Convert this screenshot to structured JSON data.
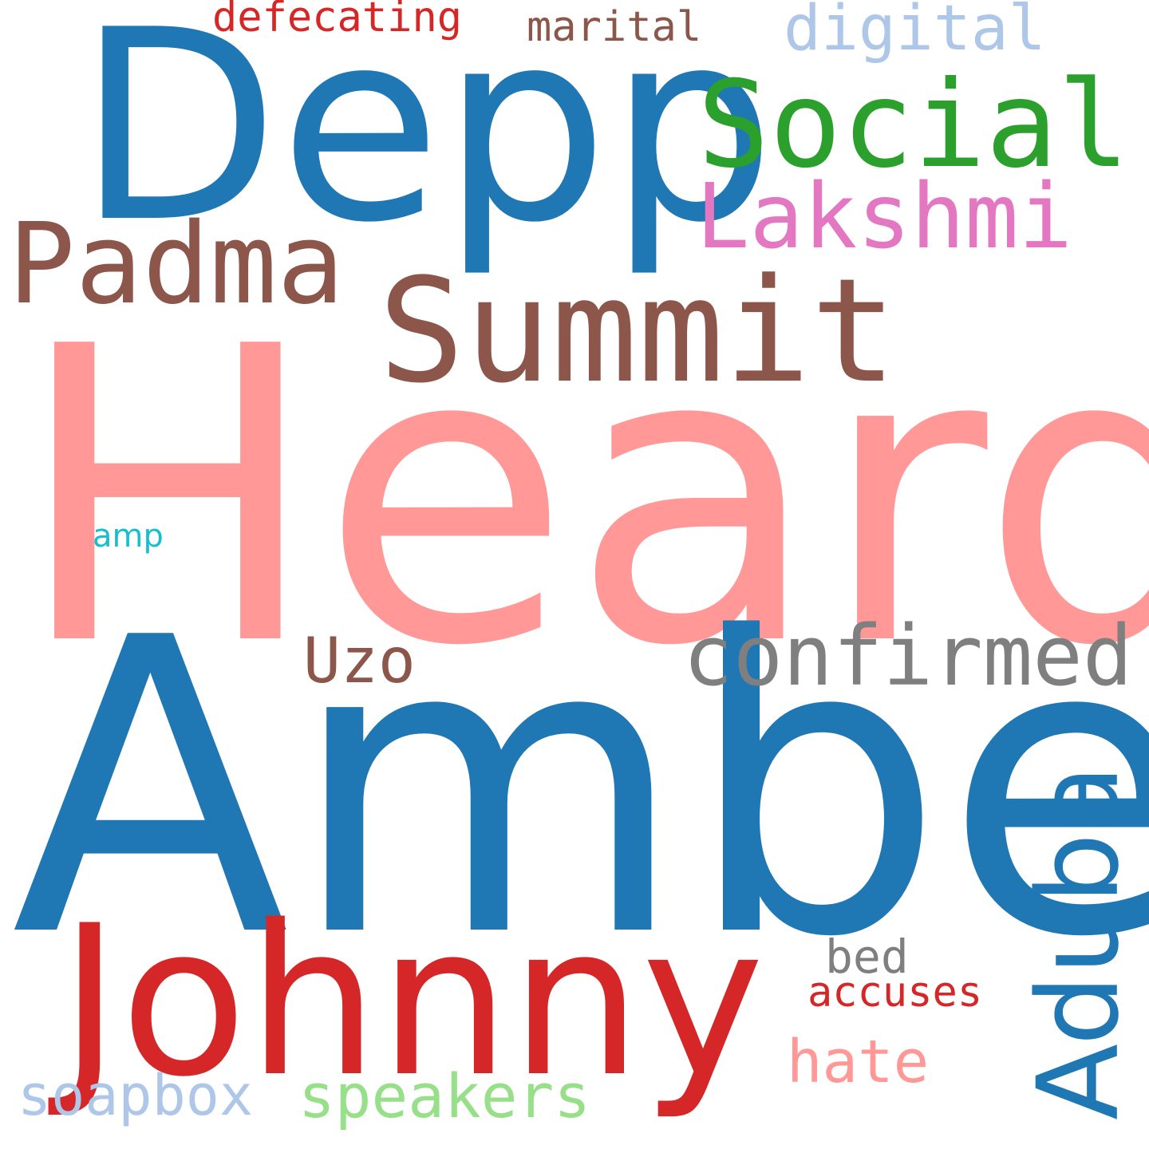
{
  "words": [
    {
      "id": "heard",
      "text": "Heard",
      "color": "#ff9896"
    },
    {
      "id": "amber",
      "text": "Amber",
      "color": "#1f77b4"
    },
    {
      "id": "depp",
      "text": "Depp",
      "color": "#1f77b4"
    },
    {
      "id": "johnny",
      "text": "Johnny",
      "color": "#d62728"
    },
    {
      "id": "summit",
      "text": "Summit",
      "color": "#8c564b"
    },
    {
      "id": "social",
      "text": "Social",
      "color": "#2ca02c"
    },
    {
      "id": "padma",
      "text": "Padma",
      "color": "#8c564b"
    },
    {
      "id": "lakshmi",
      "text": "Lakshmi",
      "color": "#e377c2"
    },
    {
      "id": "aduba",
      "text": "Aduba",
      "color": "#1f77b4"
    },
    {
      "id": "confirmed",
      "text": "confirmed",
      "color": "#7f7f7f"
    },
    {
      "id": "digital",
      "text": "digital",
      "color": "#aec7e8"
    },
    {
      "id": "speakers",
      "text": "speakers",
      "color": "#98df8a"
    },
    {
      "id": "soapbox",
      "text": "soapbox",
      "color": "#aec7e8"
    },
    {
      "id": "uzo",
      "text": "Uzo",
      "color": "#8c564b"
    },
    {
      "id": "hate",
      "text": "hate",
      "color": "#ff9896"
    },
    {
      "id": "defecating",
      "text": "defecating",
      "color": "#d62728"
    },
    {
      "id": "marital",
      "text": "marital",
      "color": "#8c564b"
    },
    {
      "id": "accuses",
      "text": "accuses",
      "color": "#d62728"
    },
    {
      "id": "bed",
      "text": "bed",
      "color": "#7f7f7f"
    },
    {
      "id": "amp",
      "text": "amp",
      "color": "#17becf"
    }
  ]
}
